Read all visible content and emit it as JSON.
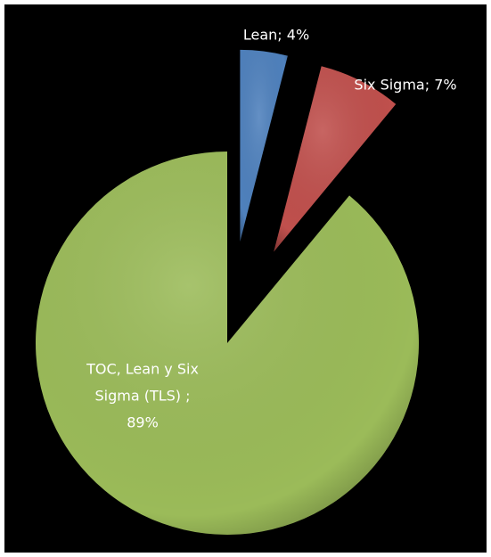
{
  "chart_data": {
    "type": "pie",
    "values": [
      4,
      7,
      89
    ],
    "value_labels": [
      [
        "Lean; 4%"
      ],
      [
        "Six Sigma; 7%"
      ],
      [
        "TOC, Lean y Six",
        "Sigma (TLS) ;",
        "89%"
      ]
    ],
    "colors": [
      "#4f81bd",
      "#c0504d",
      "#9bbb59"
    ]
  }
}
